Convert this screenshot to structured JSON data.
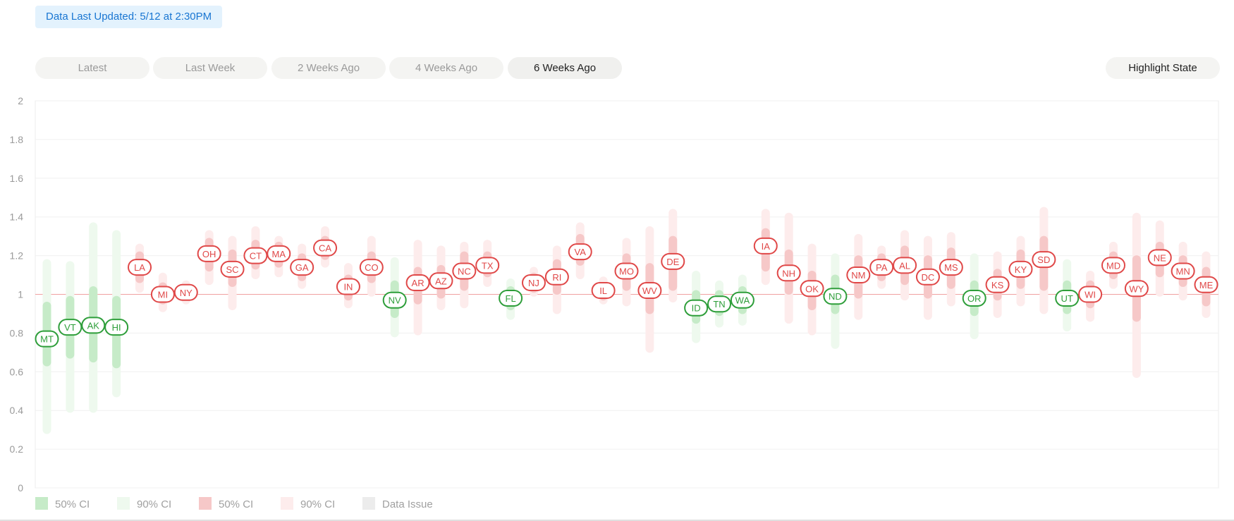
{
  "header": {
    "updated_text": "Data Last Updated: 5/12 at 2:30PM"
  },
  "tabs": [
    {
      "label": "Latest"
    },
    {
      "label": "Last Week"
    },
    {
      "label": "2 Weeks Ago"
    },
    {
      "label": "4 Weeks Ago"
    },
    {
      "label": "6 Weeks Ago",
      "active": true
    }
  ],
  "highlight_button": {
    "label": "Highlight State"
  },
  "colors": {
    "green_text": "#2e9e3a",
    "green_50": "#c6ebc8",
    "green_90": "#eef9ee",
    "red_text": "#e04848",
    "red_50": "#f6c8c8",
    "red_90": "#fdecec",
    "threshold": "#f0a0a0",
    "data_issue": "#ececec"
  },
  "legend": [
    {
      "label": "50% CI",
      "color": "#c6ebc8"
    },
    {
      "label": "90% CI",
      "color": "#eef9ee"
    },
    {
      "label": "50% CI",
      "color": "#f6c8c8"
    },
    {
      "label": "90% CI",
      "color": "#fdecec"
    },
    {
      "label": "Data Issue",
      "color": "#ececec"
    }
  ],
  "chart_data": {
    "type": "scatter",
    "title": "",
    "xlabel": "",
    "ylabel": "",
    "ylim": [
      0,
      2
    ],
    "yticks": [
      "2",
      "1.8",
      "1.6",
      "1.4",
      "1.2",
      "1",
      "0.8",
      "0.6",
      "0.4",
      "0.2",
      "0"
    ],
    "threshold": 1,
    "states": [
      {
        "state": "MT",
        "value": 0.77,
        "ci50": [
          0.65,
          0.94
        ],
        "ci90": [
          0.3,
          1.16
        ]
      },
      {
        "state": "VT",
        "value": 0.83,
        "ci50": [
          0.69,
          0.97
        ],
        "ci90": [
          0.41,
          1.15
        ]
      },
      {
        "state": "AK",
        "value": 0.84,
        "ci50": [
          0.67,
          1.02
        ],
        "ci90": [
          0.41,
          1.35
        ]
      },
      {
        "state": "HI",
        "value": 0.83,
        "ci50": [
          0.64,
          0.97
        ],
        "ci90": [
          0.49,
          1.31
        ]
      },
      {
        "state": "LA",
        "value": 1.14,
        "ci50": [
          1.08,
          1.2
        ],
        "ci90": [
          1.03,
          1.24
        ]
      },
      {
        "state": "MI",
        "value": 1.0,
        "ci50": [
          0.97,
          1.04
        ],
        "ci90": [
          0.93,
          1.09
        ]
      },
      {
        "state": "NY",
        "value": 1.01,
        "ci50": [
          0.99,
          1.03
        ],
        "ci90": [
          0.97,
          1.05
        ]
      },
      {
        "state": "OH",
        "value": 1.21,
        "ci50": [
          1.14,
          1.27
        ],
        "ci90": [
          1.07,
          1.31
        ]
      },
      {
        "state": "SC",
        "value": 1.13,
        "ci50": [
          1.06,
          1.21
        ],
        "ci90": [
          0.94,
          1.28
        ]
      },
      {
        "state": "CT",
        "value": 1.2,
        "ci50": [
          1.15,
          1.26
        ],
        "ci90": [
          1.1,
          1.33
        ]
      },
      {
        "state": "MA",
        "value": 1.21,
        "ci50": [
          1.16,
          1.25
        ],
        "ci90": [
          1.11,
          1.28
        ]
      },
      {
        "state": "GA",
        "value": 1.14,
        "ci50": [
          1.09,
          1.19
        ],
        "ci90": [
          1.05,
          1.24
        ]
      },
      {
        "state": "CA",
        "value": 1.24,
        "ci50": [
          1.2,
          1.28
        ],
        "ci90": [
          1.16,
          1.33
        ]
      },
      {
        "state": "IN",
        "value": 1.04,
        "ci50": [
          0.99,
          1.08
        ],
        "ci90": [
          0.95,
          1.14
        ]
      },
      {
        "state": "CO",
        "value": 1.14,
        "ci50": [
          1.08,
          1.2
        ],
        "ci90": [
          1.01,
          1.28
        ]
      },
      {
        "state": "NV",
        "value": 0.97,
        "ci50": [
          0.9,
          1.05
        ],
        "ci90": [
          0.8,
          1.17
        ]
      },
      {
        "state": "AR",
        "value": 1.06,
        "ci50": [
          0.97,
          1.12
        ],
        "ci90": [
          0.81,
          1.26
        ]
      },
      {
        "state": "AZ",
        "value": 1.07,
        "ci50": [
          1.0,
          1.13
        ],
        "ci90": [
          0.94,
          1.23
        ]
      },
      {
        "state": "NC",
        "value": 1.12,
        "ci50": [
          1.04,
          1.2
        ],
        "ci90": [
          0.95,
          1.25
        ]
      },
      {
        "state": "TX",
        "value": 1.15,
        "ci50": [
          1.11,
          1.2
        ],
        "ci90": [
          1.06,
          1.26
        ]
      },
      {
        "state": "FL",
        "value": 0.98,
        "ci50": [
          0.94,
          1.02
        ],
        "ci90": [
          0.89,
          1.06
        ]
      },
      {
        "state": "NJ",
        "value": 1.06,
        "ci50": [
          1.03,
          1.09
        ],
        "ci90": [
          1.01,
          1.12
        ]
      },
      {
        "state": "RI",
        "value": 1.09,
        "ci50": [
          1.02,
          1.16
        ],
        "ci90": [
          0.92,
          1.23
        ]
      },
      {
        "state": "VA",
        "value": 1.22,
        "ci50": [
          1.17,
          1.29
        ],
        "ci90": [
          1.1,
          1.35
        ]
      },
      {
        "state": "IL",
        "value": 1.02,
        "ci50": [
          0.99,
          1.04
        ],
        "ci90": [
          0.97,
          1.07
        ]
      },
      {
        "state": "MO",
        "value": 1.12,
        "ci50": [
          1.04,
          1.19
        ],
        "ci90": [
          0.96,
          1.27
        ]
      },
      {
        "state": "WV",
        "value": 1.02,
        "ci50": [
          0.92,
          1.14
        ],
        "ci90": [
          0.72,
          1.33
        ]
      },
      {
        "state": "DE",
        "value": 1.17,
        "ci50": [
          1.04,
          1.28
        ],
        "ci90": [
          0.98,
          1.42
        ]
      },
      {
        "state": "ID",
        "value": 0.93,
        "ci50": [
          0.87,
          1.0
        ],
        "ci90": [
          0.77,
          1.1
        ]
      },
      {
        "state": "TN",
        "value": 0.95,
        "ci50": [
          0.91,
          1.0
        ],
        "ci90": [
          0.85,
          1.05
        ]
      },
      {
        "state": "WA",
        "value": 0.97,
        "ci50": [
          0.92,
          1.02
        ],
        "ci90": [
          0.86,
          1.08
        ]
      },
      {
        "state": "IA",
        "value": 1.25,
        "ci50": [
          1.14,
          1.32
        ],
        "ci90": [
          1.07,
          1.42
        ]
      },
      {
        "state": "NH",
        "value": 1.11,
        "ci50": [
          1.02,
          1.21
        ],
        "ci90": [
          0.87,
          1.4
        ]
      },
      {
        "state": "OK",
        "value": 1.03,
        "ci50": [
          0.94,
          1.1
        ],
        "ci90": [
          0.81,
          1.24
        ]
      },
      {
        "state": "ND",
        "value": 0.99,
        "ci50": [
          0.92,
          1.08
        ],
        "ci90": [
          0.74,
          1.19
        ]
      },
      {
        "state": "NM",
        "value": 1.1,
        "ci50": [
          1.0,
          1.18
        ],
        "ci90": [
          0.89,
          1.29
        ]
      },
      {
        "state": "PA",
        "value": 1.14,
        "ci50": [
          1.09,
          1.19
        ],
        "ci90": [
          1.05,
          1.23
        ]
      },
      {
        "state": "AL",
        "value": 1.15,
        "ci50": [
          1.07,
          1.23
        ],
        "ci90": [
          0.99,
          1.31
        ]
      },
      {
        "state": "DC",
        "value": 1.09,
        "ci50": [
          1.0,
          1.18
        ],
        "ci90": [
          0.89,
          1.28
        ]
      },
      {
        "state": "MS",
        "value": 1.14,
        "ci50": [
          1.05,
          1.22
        ],
        "ci90": [
          0.96,
          1.3
        ]
      },
      {
        "state": "OR",
        "value": 0.98,
        "ci50": [
          0.91,
          1.05
        ],
        "ci90": [
          0.79,
          1.19
        ]
      },
      {
        "state": "KS",
        "value": 1.05,
        "ci50": [
          0.99,
          1.11
        ],
        "ci90": [
          0.9,
          1.2
        ]
      },
      {
        "state": "KY",
        "value": 1.13,
        "ci50": [
          1.05,
          1.21
        ],
        "ci90": [
          0.96,
          1.28
        ]
      },
      {
        "state": "SD",
        "value": 1.18,
        "ci50": [
          1.04,
          1.28
        ],
        "ci90": [
          0.92,
          1.43
        ]
      },
      {
        "state": "UT",
        "value": 0.98,
        "ci50": [
          0.92,
          1.05
        ],
        "ci90": [
          0.83,
          1.16
        ]
      },
      {
        "state": "WI",
        "value": 1.0,
        "ci50": [
          0.95,
          1.05
        ],
        "ci90": [
          0.88,
          1.1
        ]
      },
      {
        "state": "MD",
        "value": 1.15,
        "ci50": [
          1.1,
          1.2
        ],
        "ci90": [
          1.05,
          1.25
        ]
      },
      {
        "state": "WY",
        "value": 1.03,
        "ci50": [
          0.88,
          1.18
        ],
        "ci90": [
          0.59,
          1.4
        ]
      },
      {
        "state": "NE",
        "value": 1.19,
        "ci50": [
          1.11,
          1.25
        ],
        "ci90": [
          1.01,
          1.36
        ]
      },
      {
        "state": "MN",
        "value": 1.12,
        "ci50": [
          1.06,
          1.18
        ],
        "ci90": [
          0.99,
          1.25
        ]
      },
      {
        "state": "ME",
        "value": 1.05,
        "ci50": [
          0.96,
          1.12
        ],
        "ci90": [
          0.9,
          1.2
        ]
      }
    ]
  }
}
